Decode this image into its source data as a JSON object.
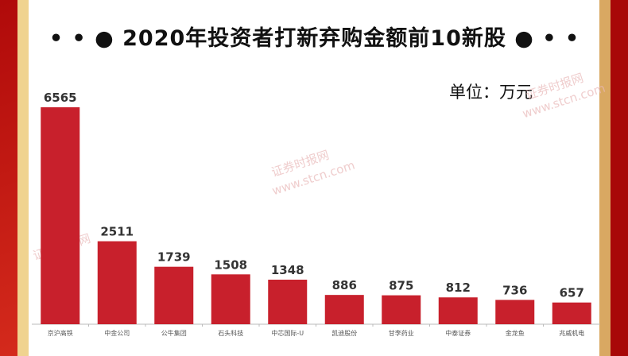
{
  "title": "• • ●  2020年投资者打新弃购金额前10新股  ● • •",
  "unit": "单位：万元",
  "watermark": [
    "证券时报网",
    "www.stcn.com"
  ],
  "colors": {
    "bar": "#c8202c",
    "border_red": "#b00a0a",
    "border_gold": "#f0d38f"
  },
  "chart_data": {
    "type": "bar",
    "title": "2020年投资者打新弃购金额前10新股",
    "ylabel": "单位：万元",
    "categories": [
      "京沪高铁",
      "中金公司",
      "公牛集团",
      "石头科技",
      "中芯国际-U",
      "凯迪股份",
      "甘李药业",
      "中泰证券",
      "金龙鱼",
      "兆威机电"
    ],
    "values": [
      6565,
      2511,
      1739,
      1508,
      1348,
      886,
      875,
      812,
      736,
      657
    ],
    "ylim": [
      0,
      6565
    ],
    "grid": false,
    "data_labels": true
  }
}
